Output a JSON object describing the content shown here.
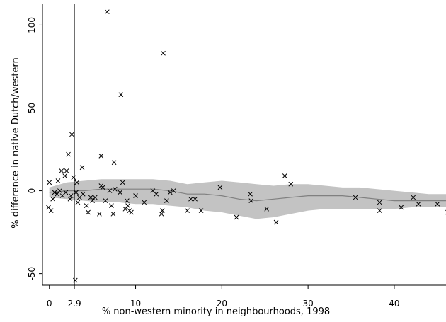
{
  "chart_data": {
    "type": "scatter",
    "xlabel": "% non-western minority in neighbourhoods, 1998",
    "ylabel": "% difference in native Dutch/western",
    "xlim": [
      -0.8,
      46
    ],
    "ylim": [
      -57,
      113
    ],
    "x_ticks": [
      0,
      10,
      20,
      30,
      40
    ],
    "y_ticks": [
      -50,
      0,
      50,
      100
    ],
    "y_tick_labels": [
      "-50",
      "0",
      "50",
      "100"
    ],
    "reference_line": {
      "x": 2.9,
      "label": "2.9"
    },
    "grid": false,
    "legend": "none",
    "marker": "x",
    "colors": {
      "points": "#000000",
      "band": "#c3c3c3",
      "fit": "#808080",
      "axis": "#000000"
    },
    "fit": {
      "x": [
        0,
        2,
        4,
        6,
        8,
        10,
        12,
        14,
        16,
        18,
        20,
        22,
        24,
        26,
        28,
        30,
        32,
        34,
        36,
        38,
        40,
        42,
        44,
        46
      ],
      "y": [
        -1,
        0,
        0,
        1,
        1,
        1,
        1,
        0,
        -2,
        -2,
        -3,
        -5,
        -6,
        -5,
        -4,
        -3,
        -3,
        -3,
        -4,
        -5,
        -6,
        -6,
        -6,
        -6
      ],
      "lower": [
        -4,
        -5,
        -6,
        -7,
        -7,
        -8,
        -8,
        -9,
        -10,
        -12,
        -13,
        -15,
        -17,
        -16,
        -14,
        -12,
        -11,
        -11,
        -11,
        -11,
        -11,
        -10,
        -10,
        -10
      ],
      "upper": [
        2,
        5,
        6,
        7,
        7,
        7,
        7,
        6,
        4,
        5,
        6,
        5,
        4,
        3,
        4,
        4,
        3,
        2,
        2,
        1,
        0,
        -1,
        -2,
        -2
      ]
    },
    "points": [
      {
        "x": 6.7,
        "y": 108
      },
      {
        "x": 13.2,
        "y": 83
      },
      {
        "x": 8.3,
        "y": 58
      },
      {
        "x": 2.6,
        "y": 34
      },
      {
        "x": 2.2,
        "y": 22
      },
      {
        "x": 6.0,
        "y": 21
      },
      {
        "x": 7.5,
        "y": 17
      },
      {
        "x": 3.8,
        "y": 14
      },
      {
        "x": 1.4,
        "y": 12
      },
      {
        "x": 2.0,
        "y": 12
      },
      {
        "x": 1.8,
        "y": 9
      },
      {
        "x": 2.8,
        "y": 8
      },
      {
        "x": 0.0,
        "y": 5
      },
      {
        "x": 1.0,
        "y": 6
      },
      {
        "x": 3.2,
        "y": 5
      },
      {
        "x": 8.5,
        "y": 5
      },
      {
        "x": 6.2,
        "y": 2
      },
      {
        "x": 12.0,
        "y": 0
      },
      {
        "x": 14.0,
        "y": -1
      },
      {
        "x": 19.8,
        "y": 2
      },
      {
        "x": 23.3,
        "y": -2
      },
      {
        "x": 23.4,
        "y": -6
      },
      {
        "x": 27.3,
        "y": 9
      },
      {
        "x": 28.0,
        "y": 4
      },
      {
        "x": 35.5,
        "y": -4
      },
      {
        "x": 38.3,
        "y": -7
      },
      {
        "x": 38.3,
        "y": -12
      },
      {
        "x": 40.8,
        "y": -10
      },
      {
        "x": 42.2,
        "y": -4
      },
      {
        "x": 42.8,
        "y": -8
      },
      {
        "x": 45.0,
        "y": -8
      },
      {
        "x": 46.2,
        "y": -13
      },
      {
        "x": 26.3,
        "y": -19
      },
      {
        "x": 21.7,
        "y": -16
      },
      {
        "x": 25.2,
        "y": -11
      },
      {
        "x": 16.4,
        "y": -5
      },
      {
        "x": 16.9,
        "y": -5
      },
      {
        "x": 16.0,
        "y": -12
      },
      {
        "x": 17.6,
        "y": -12
      },
      {
        "x": 13.0,
        "y": -14
      },
      {
        "x": 13.1,
        "y": -12
      },
      {
        "x": 13.6,
        "y": -6
      },
      {
        "x": 11.0,
        "y": -7
      },
      {
        "x": 9.0,
        "y": -6
      },
      {
        "x": 9.1,
        "y": -9
      },
      {
        "x": 9.3,
        "y": -12
      },
      {
        "x": 9.5,
        "y": -13
      },
      {
        "x": 8.8,
        "y": -11
      },
      {
        "x": 7.4,
        "y": -14
      },
      {
        "x": 7.2,
        "y": -9
      },
      {
        "x": 6.5,
        "y": -6
      },
      {
        "x": 5.8,
        "y": -14
      },
      {
        "x": 5.3,
        "y": -4
      },
      {
        "x": 5.0,
        "y": -6
      },
      {
        "x": 4.8,
        "y": -4
      },
      {
        "x": 4.3,
        "y": -9
      },
      {
        "x": 4.5,
        "y": -13
      },
      {
        "x": 3.9,
        "y": -2
      },
      {
        "x": 3.5,
        "y": -4
      },
      {
        "x": 3.1,
        "y": -1
      },
      {
        "x": 3.3,
        "y": -7
      },
      {
        "x": 2.5,
        "y": -3
      },
      {
        "x": 1.9,
        "y": -1
      },
      {
        "x": 1.5,
        "y": -3
      },
      {
        "x": 1.2,
        "y": 0
      },
      {
        "x": 0.9,
        "y": -2
      },
      {
        "x": 0.6,
        "y": -1
      },
      {
        "x": 0.4,
        "y": -5
      },
      {
        "x": 0.2,
        "y": -12
      },
      {
        "x": -0.1,
        "y": -10
      },
      {
        "x": 2.4,
        "y": -5
      },
      {
        "x": 3.0,
        "y": -54
      },
      {
        "x": 6.0,
        "y": 3
      },
      {
        "x": 7.0,
        "y": 0
      },
      {
        "x": 7.6,
        "y": 1
      },
      {
        "x": 8.2,
        "y": -1
      },
      {
        "x": 10.0,
        "y": -3
      },
      {
        "x": 12.4,
        "y": -2
      },
      {
        "x": 14.4,
        "y": 0
      }
    ]
  }
}
